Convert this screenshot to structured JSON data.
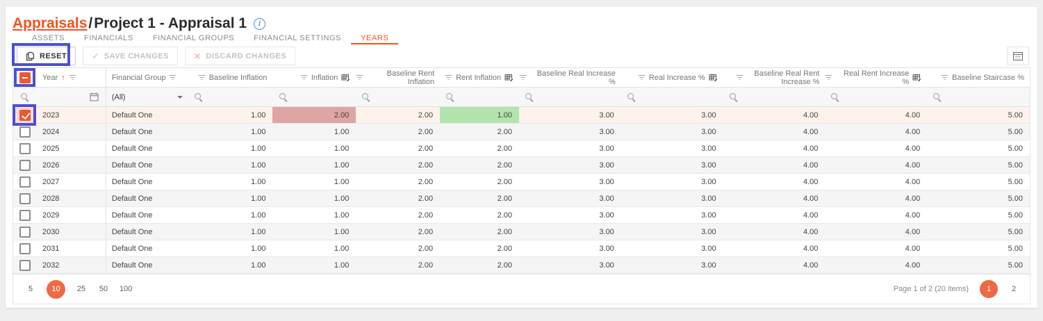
{
  "colors": {
    "accent": "#f4511e",
    "checkbox": "#f0572f",
    "pager": "#ed6a45",
    "cellRed": "#dfa5a5",
    "cellGreen": "#b2e5ab",
    "selectedRow": "#fdf2ec",
    "annotation": "#4b50d2"
  },
  "icons": {
    "sort_asc": "↑",
    "info": "i",
    "check": "✓",
    "close": "✕"
  },
  "breadcrumb": {
    "link": "Appraisals",
    "separator": "/",
    "current": "Project 1 - Appraisal 1"
  },
  "tabs": [
    {
      "label": "ASSETS",
      "active": false
    },
    {
      "label": "FINANCIALS",
      "active": false
    },
    {
      "label": "FINANCIAL GROUPS",
      "active": false
    },
    {
      "label": "FINANCIAL SETTINGS",
      "active": false
    },
    {
      "label": "YEARS",
      "active": true
    }
  ],
  "toolbar": {
    "reset_label": "RESET",
    "save_label": "SAVE CHANGES",
    "discard_label": "DISCARD CHANGES"
  },
  "grid": {
    "columns": [
      {
        "label": "Year",
        "sorted": "asc"
      },
      {
        "label": "Financial Group"
      },
      {
        "label": "Baseline Inflation"
      },
      {
        "label": "Inflation",
        "editable": true
      },
      {
        "label": "Baseline Rent Inflation"
      },
      {
        "label": "Rent Inflation",
        "editable": true
      },
      {
        "label": "Baseline Real Increase %"
      },
      {
        "label": "Real Increase %",
        "editable": true
      },
      {
        "label": "Baseline Real Rent Increase %"
      },
      {
        "label": "Real Rent Increase %",
        "editable": true
      },
      {
        "label": "Baseline Staircase %"
      }
    ],
    "filter_row": {
      "group_value": "(All)"
    },
    "rows": [
      {
        "year": "2023",
        "group": "Default One",
        "checked": true,
        "selected": true,
        "values": [
          "1.00",
          "2.00",
          "2.00",
          "1.00",
          "3.00",
          "3.00",
          "4.00",
          "4.00",
          "5.00"
        ],
        "highlights": {
          "1": "red",
          "3": "green"
        }
      },
      {
        "year": "2024",
        "group": "Default One",
        "values": [
          "1.00",
          "1.00",
          "2.00",
          "2.00",
          "3.00",
          "3.00",
          "4.00",
          "4.00",
          "5.00"
        ]
      },
      {
        "year": "2025",
        "group": "Default One",
        "values": [
          "1.00",
          "1.00",
          "2.00",
          "2.00",
          "3.00",
          "3.00",
          "4.00",
          "4.00",
          "5.00"
        ]
      },
      {
        "year": "2026",
        "group": "Default One",
        "values": [
          "1.00",
          "1.00",
          "2.00",
          "2.00",
          "3.00",
          "3.00",
          "4.00",
          "4.00",
          "5.00"
        ]
      },
      {
        "year": "2027",
        "group": "Default One",
        "values": [
          "1.00",
          "1.00",
          "2.00",
          "2.00",
          "3.00",
          "3.00",
          "4.00",
          "4.00",
          "5.00"
        ]
      },
      {
        "year": "2028",
        "group": "Default One",
        "values": [
          "1.00",
          "1.00",
          "2.00",
          "2.00",
          "3.00",
          "3.00",
          "4.00",
          "4.00",
          "5.00"
        ]
      },
      {
        "year": "2029",
        "group": "Default One",
        "values": [
          "1.00",
          "1.00",
          "2.00",
          "2.00",
          "3.00",
          "3.00",
          "4.00",
          "4.00",
          "5.00"
        ]
      },
      {
        "year": "2030",
        "group": "Default One",
        "values": [
          "1.00",
          "1.00",
          "2.00",
          "2.00",
          "3.00",
          "3.00",
          "4.00",
          "4.00",
          "5.00"
        ]
      },
      {
        "year": "2031",
        "group": "Default One",
        "values": [
          "1.00",
          "1.00",
          "2.00",
          "2.00",
          "3.00",
          "3.00",
          "4.00",
          "4.00",
          "5.00"
        ]
      },
      {
        "year": "2032",
        "group": "Default One",
        "values": [
          "1.00",
          "1.00",
          "2.00",
          "2.00",
          "3.00",
          "3.00",
          "4.00",
          "4.00",
          "5.00"
        ]
      }
    ]
  },
  "pager": {
    "sizes": [
      "5",
      "10",
      "25",
      "50",
      "100"
    ],
    "active_size": "10",
    "info": "Page 1 of 2 (20 items)",
    "pages": [
      "1",
      "2"
    ],
    "active_page": "1"
  }
}
